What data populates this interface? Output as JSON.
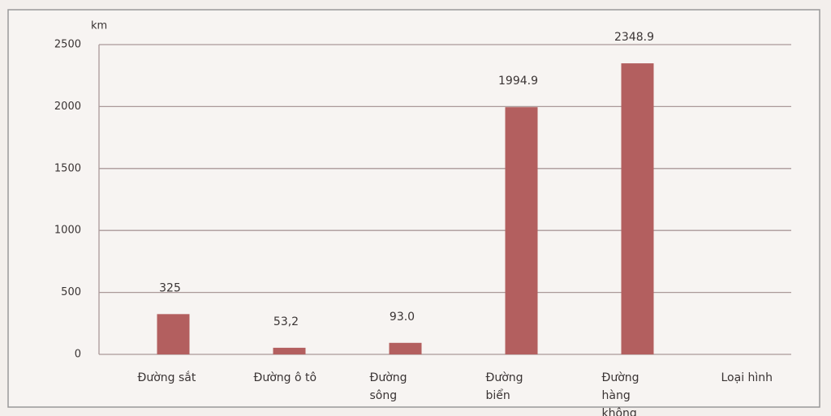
{
  "chart_data": {
    "type": "bar",
    "y_label": "km",
    "x_label": "Loại hình",
    "categories": [
      "Đường sắt",
      "Đường ô tô",
      "Đường sông",
      "Đường biển",
      "Đường hàng không"
    ],
    "values": [
      325,
      53.2,
      93.0,
      1994.9,
      2348.9
    ],
    "value_labels": [
      "325",
      "53,2",
      "93.0",
      "1994.9",
      "2348.9"
    ],
    "color": "#b35f5f",
    "ylim": [
      0,
      2500
    ],
    "yticks": [
      0,
      500,
      1000,
      1500,
      2000,
      2500
    ],
    "grid": true
  }
}
